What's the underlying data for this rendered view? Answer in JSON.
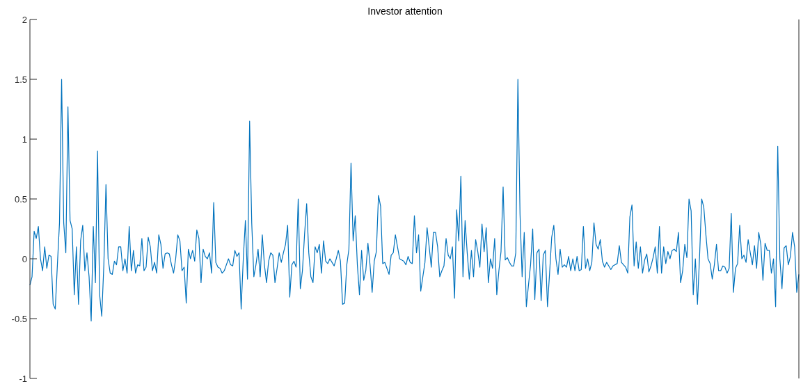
{
  "chart_data": {
    "type": "line",
    "title": "Investor attention",
    "categories": [
      null,
      null,
      null,
      null,
      null,
      null,
      null,
      null,
      null,
      null,
      null,
      null,
      null,
      null,
      null,
      null,
      null,
      null,
      null,
      null,
      null,
      null,
      null,
      null,
      null,
      null,
      null,
      null,
      null,
      null,
      null,
      null,
      null,
      null,
      null,
      null,
      null,
      null,
      null,
      null,
      null,
      null,
      null,
      null,
      null,
      null,
      null,
      null,
      null,
      null,
      null,
      null,
      null,
      null,
      null,
      null,
      null,
      null,
      null,
      null,
      null,
      null,
      null,
      null,
      null,
      null,
      null,
      null,
      null,
      null,
      null,
      null,
      null,
      null,
      null,
      null,
      null,
      null,
      null,
      null,
      null,
      null,
      null,
      null,
      null,
      null,
      null,
      null,
      null,
      null,
      null,
      null,
      null,
      null,
      null,
      null,
      null,
      null,
      null,
      null,
      null,
      null,
      null,
      null,
      null,
      null,
      null,
      null,
      null,
      null,
      null,
      null,
      null,
      null,
      null,
      null,
      null,
      null,
      null,
      null,
      null,
      null,
      null,
      null,
      null,
      null,
      null,
      null,
      null,
      null,
      null,
      null,
      null,
      null,
      null,
      null,
      null,
      null,
      null,
      null,
      null,
      null,
      null,
      null,
      null,
      null,
      null,
      null,
      null,
      null,
      null,
      null,
      null,
      null,
      null,
      null,
      null,
      null,
      null,
      null,
      null,
      null,
      null,
      null,
      null,
      null,
      null,
      null,
      null,
      null,
      null,
      null,
      null,
      null,
      null,
      null,
      null,
      null,
      null,
      null,
      null,
      null,
      null,
      null,
      null,
      null,
      null,
      null,
      null,
      null,
      null,
      null,
      null,
      null,
      null,
      null,
      null,
      null,
      null,
      null,
      null,
      null,
      null,
      null,
      null,
      null,
      null,
      null,
      null,
      null,
      null,
      null,
      null,
      null,
      null,
      null,
      null,
      null,
      null,
      null,
      null,
      null,
      null,
      null,
      null,
      null,
      null,
      null,
      null,
      null,
      null,
      null,
      null,
      null,
      null,
      null,
      null,
      null,
      null,
      null,
      null,
      null,
      null,
      null,
      null,
      null,
      null,
      null,
      null,
      null,
      null,
      null,
      null,
      null,
      null,
      null,
      null,
      null,
      null,
      null,
      null,
      null,
      null,
      null,
      null,
      null,
      null,
      null,
      null,
      null,
      null,
      null,
      null,
      null,
      null,
      null,
      null,
      null,
      null,
      null,
      null,
      null,
      null,
      null,
      null,
      null,
      null,
      null,
      null,
      null,
      null,
      null,
      null,
      null,
      null,
      null,
      null,
      null,
      null,
      null,
      null,
      null,
      null,
      null,
      null,
      null,
      null,
      null,
      null,
      null,
      null,
      null,
      null,
      null,
      null,
      null,
      null,
      null,
      null,
      null,
      null,
      null,
      null,
      null,
      null,
      null,
      null,
      null,
      null,
      null,
      null,
      null,
      null,
      null,
      null,
      null,
      null,
      null,
      null,
      null,
      null,
      null,
      null,
      null,
      null,
      null,
      null,
      null,
      null,
      null,
      null,
      null,
      null,
      null,
      null,
      null,
      null,
      null,
      null,
      null,
      null,
      null,
      null,
      null,
      null
    ],
    "series": [
      {
        "color": "#0072bd",
        "values": [
          -0.22,
          -0.15,
          0.23,
          0.17,
          0.27,
          0.0,
          -0.1,
          0.1,
          -0.08,
          0.03,
          0.02,
          -0.38,
          -0.42,
          -0.05,
          0.3,
          1.5,
          0.3,
          0.05,
          1.27,
          0.32,
          0.25,
          -0.3,
          0.1,
          -0.38,
          0.15,
          0.28,
          -0.1,
          0.05,
          -0.15,
          -0.52,
          0.27,
          -0.2,
          0.9,
          -0.3,
          -0.48,
          -0.05,
          0.62,
          0.0,
          -0.12,
          -0.13,
          -0.02,
          -0.05,
          0.1,
          0.1,
          -0.1,
          0.0,
          -0.12,
          0.27,
          -0.1,
          0.07,
          -0.12,
          -0.05,
          -0.06,
          0.17,
          -0.1,
          -0.07,
          0.18,
          0.1,
          -0.1,
          -0.03,
          -0.12,
          0.2,
          0.12,
          -0.08,
          0.04,
          0.05,
          0.04,
          -0.05,
          -0.12,
          0.0,
          0.2,
          0.15,
          -0.1,
          -0.07,
          -0.37,
          0.08,
          0.0,
          0.07,
          -0.02,
          0.24,
          0.17,
          -0.2,
          0.08,
          0.02,
          0.0,
          0.05,
          -0.12,
          0.47,
          -0.03,
          -0.07,
          -0.08,
          -0.12,
          -0.1,
          -0.05,
          0.0,
          -0.05,
          -0.06,
          0.07,
          0.02,
          0.05,
          -0.42,
          0.0,
          0.32,
          -0.17,
          1.15,
          0.3,
          -0.15,
          -0.05,
          0.08,
          -0.15,
          0.2,
          -0.05,
          -0.2,
          -0.02,
          0.05,
          0.03,
          -0.2,
          -0.08,
          0.05,
          -0.03,
          0.05,
          0.12,
          0.28,
          -0.32,
          -0.05,
          -0.02,
          -0.07,
          0.5,
          -0.25,
          -0.1,
          0.2,
          0.46,
          0.05,
          -0.15,
          -0.2,
          0.1,
          0.05,
          0.12,
          -0.12,
          0.15,
          -0.02,
          -0.04,
          0.0,
          -0.03,
          -0.06,
          0.0,
          0.07,
          -0.02,
          -0.38,
          -0.37,
          -0.05,
          0.08,
          0.8,
          0.15,
          0.36,
          -0.05,
          -0.3,
          0.07,
          -0.18,
          -0.1,
          0.13,
          -0.05,
          -0.28,
          -0.02,
          0.06,
          0.53,
          0.44,
          -0.04,
          -0.03,
          -0.08,
          -0.13,
          0.03,
          0.05,
          0.2,
          0.1,
          0.0,
          -0.01,
          -0.02,
          -0.05,
          0.02,
          -0.03,
          -0.04,
          0.36,
          0.05,
          0.2,
          -0.27,
          -0.15,
          -0.03,
          0.26,
          0.1,
          -0.07,
          0.22,
          0.22,
          0.1,
          -0.15,
          -0.1,
          -0.06,
          0.17,
          0.03,
          0.0,
          0.1,
          -0.33,
          0.41,
          0.15,
          0.69,
          -0.15,
          0.32,
          0.05,
          -0.17,
          0.07,
          -0.15,
          0.16,
          0.06,
          -0.07,
          0.29,
          0.06,
          0.26,
          -0.2,
          0.0,
          -0.08,
          0.17,
          -0.3,
          -0.1,
          0.06,
          0.6,
          -0.01,
          0.01,
          -0.03,
          -0.06,
          -0.06,
          0.05,
          1.5,
          0.37,
          -0.15,
          0.22,
          -0.4,
          -0.22,
          -0.05,
          0.25,
          -0.34,
          0.05,
          0.08,
          -0.35,
          0.03,
          0.07,
          -0.4,
          -0.12,
          0.18,
          0.28,
          0.0,
          -0.13,
          0.08,
          -0.07,
          -0.05,
          -0.07,
          0.02,
          -0.1,
          0.0,
          -0.1,
          0.02,
          -0.1,
          -0.09,
          0.27,
          -0.08,
          0.0,
          -0.1,
          -0.03,
          0.3,
          0.12,
          0.08,
          0.16,
          -0.02,
          -0.07,
          -0.03,
          -0.06,
          -0.09,
          -0.06,
          -0.05,
          -0.04,
          0.11,
          -0.03,
          -0.05,
          -0.07,
          -0.12,
          0.35,
          0.45,
          -0.06,
          0.14,
          -0.08,
          0.1,
          -0.12,
          -0.01,
          0.04,
          -0.11,
          -0.06,
          0.01,
          0.1,
          -0.12,
          0.27,
          -0.12,
          0.1,
          -0.04,
          0.06,
          0.0,
          0.07,
          0.08,
          0.06,
          0.22,
          -0.2,
          -0.1,
          0.12,
          0.01,
          0.5,
          0.4,
          -0.3,
          0.0,
          -0.38,
          0.02,
          0.5,
          0.43,
          0.2,
          0.0,
          -0.04,
          -0.17,
          -0.05,
          0.12,
          -0.1,
          -0.1,
          -0.06,
          -0.07,
          -0.12,
          -0.08,
          0.38,
          -0.28,
          -0.08,
          -0.04,
          0.28,
          0.0,
          0.03,
          -0.03,
          0.16,
          0.05,
          -0.05,
          0.11,
          -0.08,
          0.22,
          0.12,
          -0.18,
          0.13,
          0.07,
          0.07,
          -0.12,
          0.0,
          -0.4,
          0.94,
          0.0,
          -0.25,
          0.09,
          0.11,
          -0.05,
          0.02,
          0.22,
          0.1,
          -0.28,
          -0.13
        ]
      }
    ],
    "ylim": [
      -1,
      2
    ],
    "yticks": [
      -1,
      -0.5,
      0,
      0.5,
      1,
      1.5,
      2
    ],
    "grid": false,
    "legend": false,
    "tick_labels": "y",
    "marker": "none",
    "line_style": "solid"
  }
}
